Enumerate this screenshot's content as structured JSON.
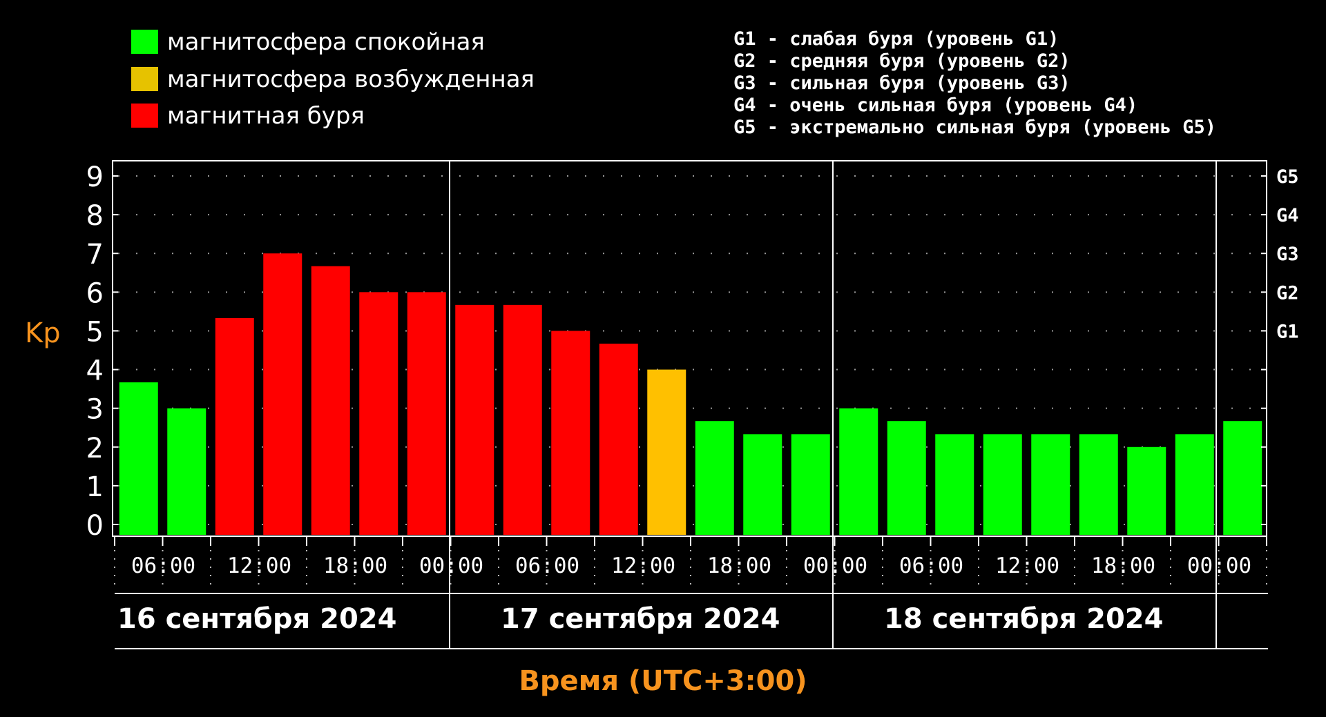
{
  "legend": [
    {
      "label": "магнитосфера спокойная",
      "color": "#00ff00"
    },
    {
      "label": "магнитосфера возбужденная",
      "color": "#e6c200"
    },
    {
      "label": "магнитная буря",
      "color": "#ff0000"
    }
  ],
  "g_levels": [
    "G1 - слабая буря (уровень G1)",
    "G2 - средняя буря (уровень G2)",
    "G3 - сильная буря (уровень G3)",
    "G4 - очень сильная буря (уровень G4)",
    "G5 - экстремально сильная буря (уровень G5)"
  ],
  "colors": {
    "quiet": "#00ff00",
    "active": "#ffc000",
    "storm": "#ff0000",
    "axis_title": "#f7931e"
  },
  "chart_data": {
    "type": "bar",
    "ylabel": "Kp",
    "xlabel": "Время (UTC+3:00)",
    "ylim": [
      0,
      9
    ],
    "yticks": [
      "0",
      "1",
      "2",
      "3",
      "4",
      "5",
      "6",
      "7",
      "8",
      "9"
    ],
    "right_ticks": [
      {
        "value": 5,
        "label": "G1"
      },
      {
        "value": 6,
        "label": "G2"
      },
      {
        "value": 7,
        "label": "G3"
      },
      {
        "value": 8,
        "label": "G4"
      },
      {
        "value": 9,
        "label": "G5"
      }
    ],
    "xtick_labels": [
      "06:00",
      "12:00",
      "18:00",
      "00:00",
      "06:00",
      "12:00",
      "18:00",
      "00:00",
      "06:00",
      "12:00",
      "18:00",
      "00:00"
    ],
    "dates": [
      "16 сентября 2024",
      "17 сентября 2024",
      "18 сентября 2024"
    ],
    "values": [
      3.67,
      3.0,
      5.33,
      7.0,
      6.67,
      6.0,
      6.0,
      5.67,
      5.67,
      5.0,
      4.67,
      4.0,
      2.67,
      2.33,
      2.33,
      3.0,
      2.67,
      2.33,
      2.33,
      2.33,
      2.33,
      2.0,
      2.33,
      2.67
    ],
    "categories": [
      "quiet",
      "quiet",
      "storm",
      "storm",
      "storm",
      "storm",
      "storm",
      "storm",
      "storm",
      "storm",
      "storm",
      "active",
      "quiet",
      "quiet",
      "quiet",
      "quiet",
      "quiet",
      "quiet",
      "quiet",
      "quiet",
      "quiet",
      "quiet",
      "quiet",
      "quiet"
    ],
    "grid": true
  }
}
